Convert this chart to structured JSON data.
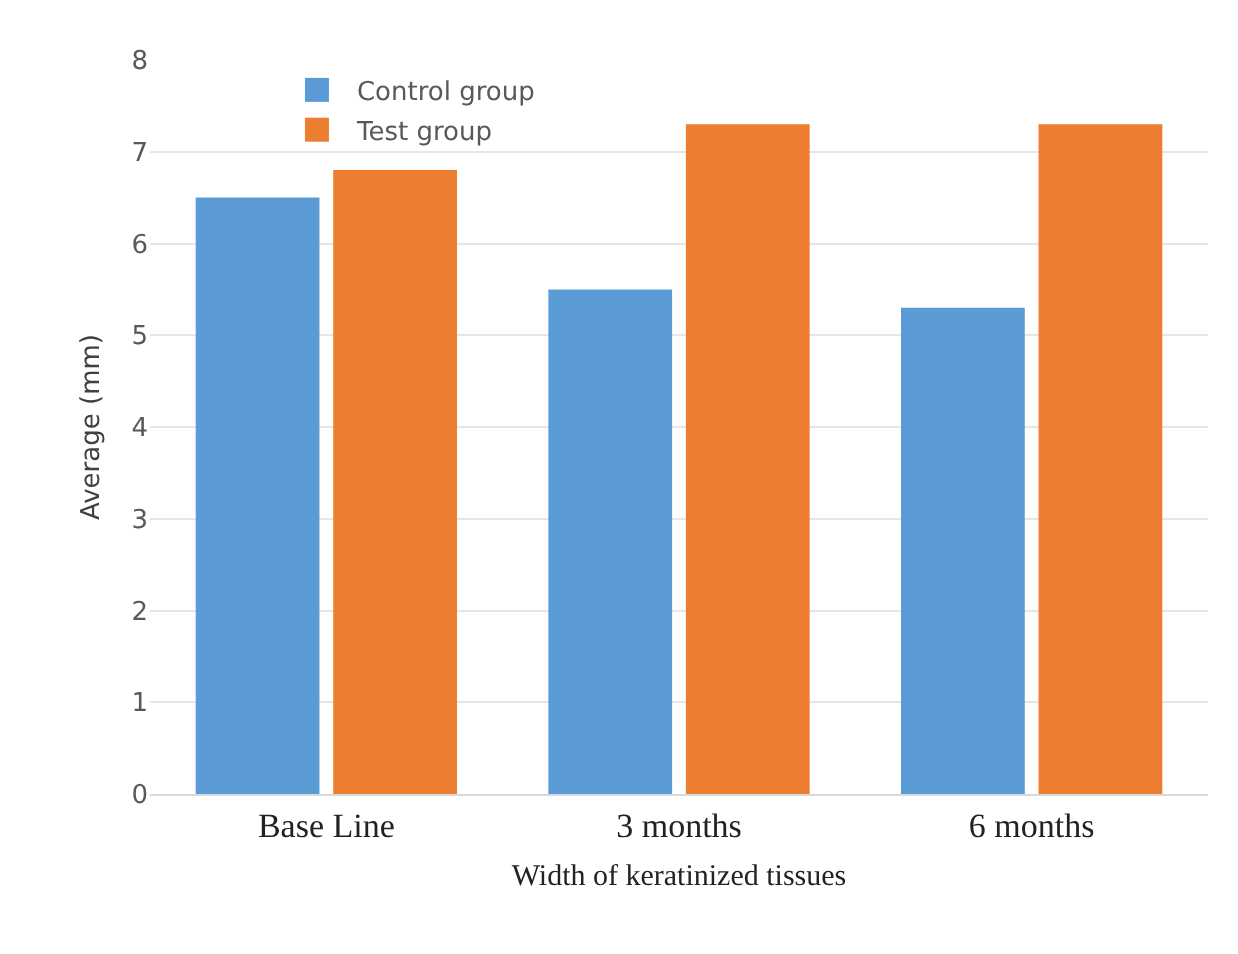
{
  "chart_data": {
    "type": "bar",
    "xlabel": "Width of keratinized tissues",
    "ylabel": "Average (mm)",
    "categories": [
      "Base Line",
      "3 months",
      "6 months"
    ],
    "series": [
      {
        "name": "Control group",
        "color": "#5b9bd5",
        "values": [
          6.5,
          5.5,
          5.3
        ]
      },
      {
        "name": "Test group",
        "color": "#ed7d31",
        "values": [
          6.8,
          7.3,
          7.3
        ]
      }
    ],
    "ylim": [
      0,
      8
    ],
    "yticks": [
      0,
      1,
      2,
      3,
      4,
      5,
      6,
      7,
      8
    ],
    "grid": "y",
    "legend": "top left"
  }
}
